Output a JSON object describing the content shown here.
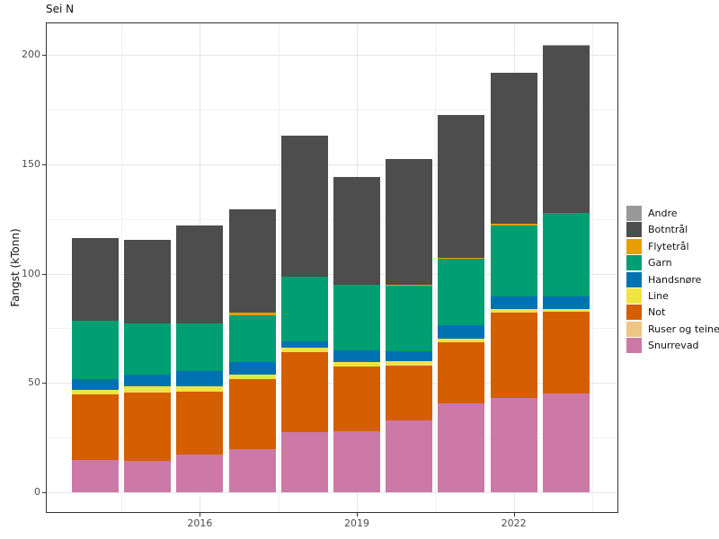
{
  "title": "Sei N",
  "chart_data": {
    "type": "bar",
    "stacked": true,
    "title": "Sei N",
    "xlabel": "",
    "ylabel": "Fangst (kTonn)",
    "categories": [
      2014,
      2015,
      2016,
      2017,
      2018,
      2019,
      2020,
      2021,
      2022,
      2023
    ],
    "x_axis": {
      "tick_labels": [
        "2016",
        "2019",
        "2022"
      ],
      "tick_years": [
        2016,
        2019,
        2022
      ],
      "minor_grid_years": [
        2014.5,
        2017.5,
        2020.5,
        2023.5
      ]
    },
    "y_axis": {
      "tick_labels": [
        "0",
        "50",
        "100",
        "150",
        "200"
      ],
      "ticks": [
        0,
        50,
        100,
        150,
        200
      ],
      "minor_grid": [
        25,
        75,
        125,
        175
      ],
      "range": [
        0,
        215
      ]
    },
    "grid": true,
    "legend_position": "right",
    "legend_order": [
      "Andre",
      "Botntrål",
      "Flytetrål",
      "Garn",
      "Handsnøre",
      "Line",
      "Not",
      "Ruser og teiner",
      "Snurrevad"
    ],
    "stack_order_bottom_to_top": [
      "Snurrevad",
      "Ruser og teiner",
      "Not",
      "Line",
      "Handsnøre",
      "Garn",
      "Flytetrål",
      "Botntrål",
      "Andre"
    ],
    "series": [
      {
        "name": "Snurrevad",
        "color": "#CC79A7",
        "values": [
          14.8,
          14.4,
          17.3,
          19.7,
          27.5,
          27.9,
          32.8,
          40.6,
          43.3,
          45.1
        ]
      },
      {
        "name": "Ruser og teiner",
        "color": "#EEC584",
        "values": [
          0,
          0,
          0,
          0,
          0,
          0,
          0,
          0,
          0,
          0
        ]
      },
      {
        "name": "Not",
        "color": "#D55E00",
        "values": [
          30.0,
          31.2,
          28.7,
          32.1,
          36.6,
          29.6,
          25.0,
          28.0,
          39.0,
          37.7
        ]
      },
      {
        "name": "Line",
        "color": "#F0E442",
        "values": [
          2.2,
          2.8,
          2.5,
          2.0,
          1.9,
          2.1,
          2.3,
          1.8,
          1.4,
          0.9
        ]
      },
      {
        "name": "Handsnøre",
        "color": "#0072B2",
        "values": [
          4.8,
          5.5,
          7.0,
          5.8,
          2.9,
          5.3,
          4.6,
          6.2,
          6.0,
          6.0
        ]
      },
      {
        "name": "Garn",
        "color": "#009E73",
        "values": [
          26.5,
          23.5,
          21.8,
          21.4,
          29.6,
          30.1,
          29.7,
          30.1,
          32.3,
          37.9
        ]
      },
      {
        "name": "Flytetrål",
        "color": "#E69F00",
        "values": [
          0,
          0,
          0,
          1.2,
          0,
          0,
          0.7,
          0.7,
          0.9,
          0
        ]
      },
      {
        "name": "Botntrål",
        "color": "#4D4D4D",
        "values": [
          38.0,
          38.1,
          44.8,
          47.3,
          64.7,
          49.3,
          57.2,
          65.1,
          69.2,
          76.6
        ]
      },
      {
        "name": "Andre",
        "color": "#999999",
        "values": [
          0,
          0,
          0,
          0,
          0,
          0,
          0,
          0,
          0,
          0.4
        ]
      }
    ],
    "totals": [
      116.3,
      115.5,
      122.1,
      129.5,
      163.2,
      144.3,
      152.3,
      172.5,
      192.1,
      204.6
    ]
  },
  "style_colors": {
    "panel_border": "#333333",
    "grid_major": "#e6e6e6",
    "grid_minor": "#f1f1f1",
    "axis_text": "#4d4d4d",
    "text": "#111111",
    "background": "#ffffff"
  }
}
